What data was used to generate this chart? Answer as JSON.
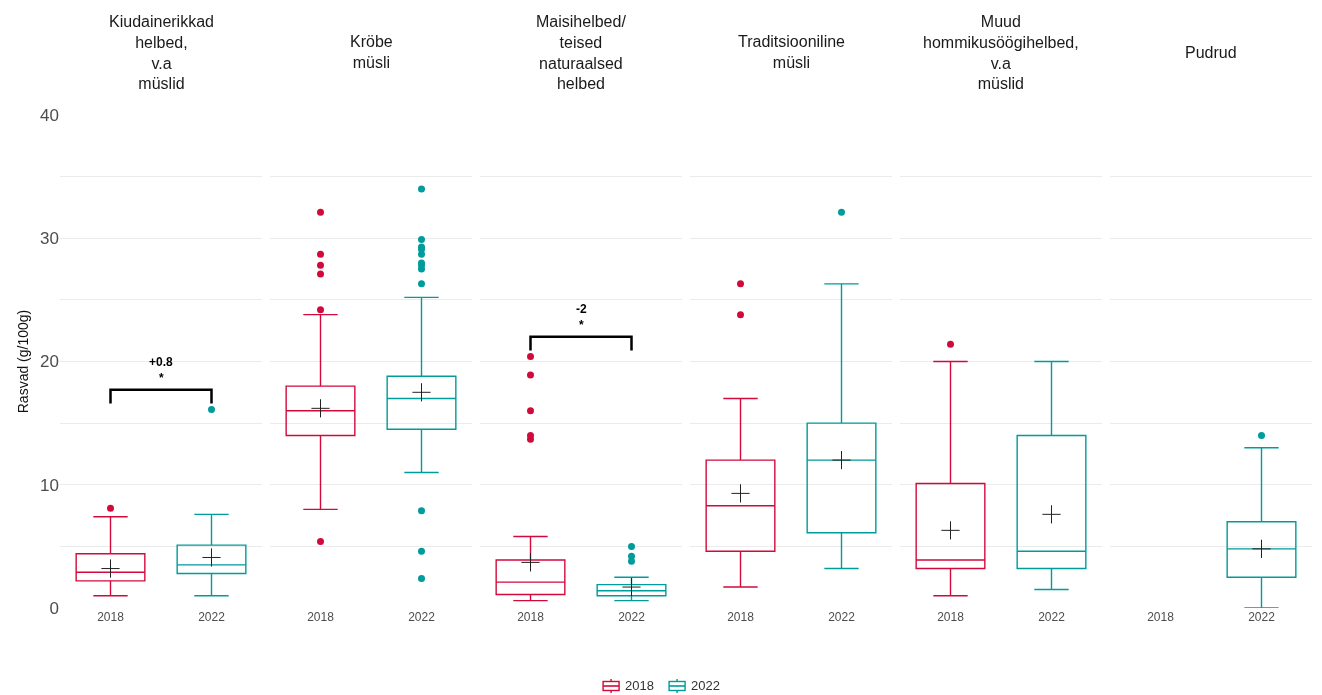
{
  "chart_data": [
    {
      "type": "box",
      "title": "Kiudainerikkad helbed, v.a müslid",
      "ylabel": "Rasvad (g/100g)",
      "categories": [
        "2018",
        "2022"
      ],
      "ylim": [
        0,
        40
      ],
      "yticks": [
        0,
        {
          "value": 5,
          "label": null
        },
        10,
        {
          "value": 15,
          "label": null
        },
        20,
        {
          "value": 25,
          "label": null
        },
        30,
        {
          "value": 35,
          "label": null
        },
        40
      ],
      "grid": "y",
      "legend": "bottom",
      "annotations": [
        "+0.8",
        "*"
      ],
      "series": [
        {
          "name": "2018",
          "color": "#d20a3c",
          "boxes": [
            {
              "low": 1.0,
              "q1": 2.2,
              "median": 2.9,
              "q3": 4.4,
              "high": 7.4,
              "mean": 3.2,
              "outliers": [
                8.1
              ]
            },
            null
          ]
        },
        {
          "name": "2022",
          "color": "#009b9b",
          "boxes": [
            null,
            {
              "low": 1.0,
              "q1": 2.8,
              "median": 3.5,
              "q3": 5.1,
              "high": 7.6,
              "mean": 4.1,
              "outliers": [
                16.1
              ]
            }
          ]
        }
      ]
    },
    {
      "type": "box",
      "title": "Kröbe müsli",
      "categories": [
        "2018",
        "2022"
      ],
      "ylim": [
        0,
        40
      ],
      "yticks": [
        0,
        {
          "value": 5,
          "label": null
        },
        10,
        {
          "value": 15,
          "label": null
        },
        20,
        {
          "value": 25,
          "label": null
        },
        30,
        {
          "value": 35,
          "label": null
        },
        40
      ],
      "grid": "y",
      "tick_labels": "x",
      "series": [
        {
          "name": "2018",
          "color": "#d20a3c",
          "boxes": [
            {
              "low": 8.0,
              "q1": 14.0,
              "median": 16.0,
              "q3": 18.0,
              "high": 23.8,
              "mean": 16.2,
              "outliers": [
                32.1,
                28.7,
                27.8,
                27.1,
                24.2,
                5.4
              ]
            },
            null
          ]
        },
        {
          "name": "2022",
          "color": "#009b9b",
          "boxes": [
            null,
            {
              "low": 11.0,
              "q1": 14.5,
              "median": 17.0,
              "q3": 18.8,
              "high": 25.2,
              "mean": 17.5,
              "outliers": [
                34.0,
                29.9,
                29.3,
                29.1,
                28.7,
                28.0,
                27.8,
                27.5,
                26.3,
                7.9,
                4.6,
                2.4
              ]
            }
          ]
        }
      ]
    },
    {
      "type": "box",
      "title": "Maisihelbed/ teised naturaalsed helbed",
      "categories": [
        "2018",
        "2022"
      ],
      "ylim": [
        0,
        40
      ],
      "yticks": [
        0,
        {
          "value": 5,
          "label": null
        },
        10,
        {
          "value": 15,
          "label": null
        },
        20,
        {
          "value": 25,
          "label": null
        },
        30,
        {
          "value": 35,
          "label": null
        },
        40
      ],
      "grid": "y",
      "tick_labels": "x",
      "annotations": [
        "-2",
        "*"
      ],
      "series": [
        {
          "name": "2018",
          "color": "#d20a3c",
          "boxes": [
            {
              "low": 0.6,
              "q1": 1.1,
              "median": 2.1,
              "q3": 3.9,
              "high": 5.8,
              "mean": 3.7,
              "outliers": [
                20.4,
                18.9,
                16.0,
                14.0,
                13.7
              ]
            },
            null
          ]
        },
        {
          "name": "2022",
          "color": "#009b9b",
          "boxes": [
            null,
            {
              "low": 0.6,
              "q1": 1.0,
              "median": 1.4,
              "q3": 1.9,
              "high": 2.5,
              "mean": 1.7,
              "outliers": [
                5.0,
                4.2,
                3.8
              ]
            }
          ]
        }
      ]
    },
    {
      "type": "box",
      "title": "Traditsiooniline müsli",
      "categories": [
        "2018",
        "2022"
      ],
      "ylim": [
        0,
        40
      ],
      "yticks": [
        0,
        {
          "value": 5,
          "label": null
        },
        10,
        {
          "value": 15,
          "label": null
        },
        20,
        {
          "value": 25,
          "label": null
        },
        30,
        {
          "value": 35,
          "label": null
        },
        40
      ],
      "grid": "y",
      "tick_labels": "x",
      "series": [
        {
          "name": "2018",
          "color": "#d20a3c",
          "boxes": [
            {
              "low": 1.7,
              "q1": 4.6,
              "median": 8.3,
              "q3": 12.0,
              "high": 17.0,
              "mean": 9.3,
              "outliers": [
                26.3,
                23.8
              ]
            },
            null
          ]
        },
        {
          "name": "2022",
          "color": "#009b9b",
          "boxes": [
            null,
            {
              "low": 3.2,
              "q1": 6.1,
              "median": 12.0,
              "q3": 15.0,
              "high": 26.3,
              "mean": 12.0,
              "outliers": [
                32.1
              ]
            }
          ]
        }
      ]
    },
    {
      "type": "box",
      "title": "Muud hommikusöögihelbed, v.a müslid",
      "categories": [
        "2018",
        "2022"
      ],
      "ylim": [
        0,
        40
      ],
      "yticks": [
        0,
        {
          "value": 5,
          "label": null
        },
        10,
        {
          "value": 15,
          "label": null
        },
        20,
        {
          "value": 25,
          "label": null
        },
        30,
        {
          "value": 35,
          "label": null
        },
        40
      ],
      "grid": "y",
      "tick_labels": "x",
      "series": [
        {
          "name": "2018",
          "color": "#d20a3c",
          "boxes": [
            {
              "low": 1.0,
              "q1": 3.2,
              "median": 3.9,
              "q3": 10.1,
              "high": 20.0,
              "mean": 6.3,
              "outliers": [
                21.4
              ]
            },
            null
          ]
        },
        {
          "name": "2022",
          "color": "#009b9b",
          "boxes": [
            null,
            {
              "low": 1.5,
              "q1": 3.2,
              "median": 4.6,
              "q3": 14.0,
              "high": 20.0,
              "mean": 7.6
            }
          ]
        }
      ]
    },
    {
      "type": "box",
      "title": "Pudrud",
      "categories": [
        "2018",
        "2022"
      ],
      "ylim": [
        0,
        40
      ],
      "yticks": [
        0,
        {
          "value": 5,
          "label": null
        },
        10,
        {
          "value": 15,
          "label": null
        },
        20,
        {
          "value": 25,
          "label": null
        },
        30,
        {
          "value": 35,
          "label": null
        },
        40
      ],
      "grid": "y",
      "tick_labels": "x",
      "series": [
        {
          "name": "2022",
          "color": "#009b9b",
          "boxes": [
            null,
            {
              "low": 0,
              "q1": 2.5,
              "median": 4.8,
              "q3": 7.0,
              "high": 13.0,
              "mean": 4.8,
              "outliers": [
                14.0
              ]
            }
          ]
        }
      ]
    }
  ]
}
